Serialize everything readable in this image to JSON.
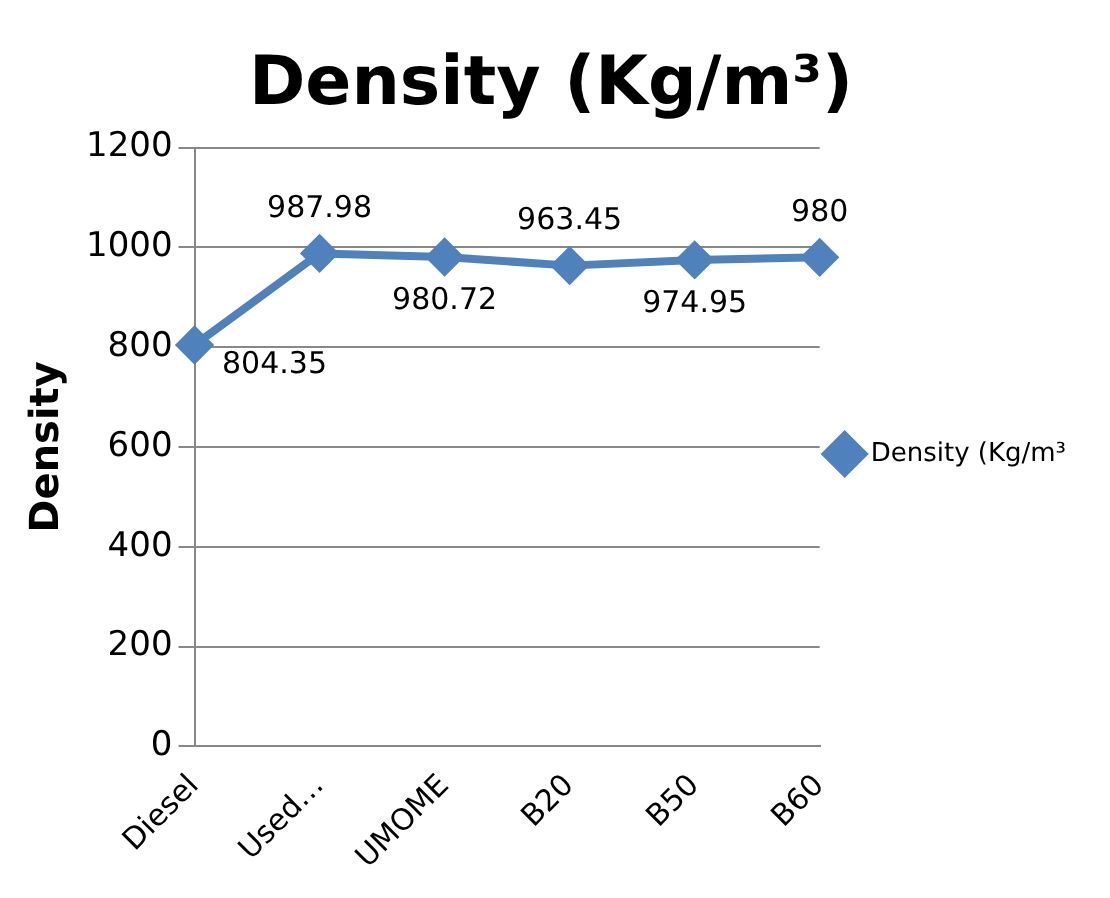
{
  "chart_data": {
    "type": "line",
    "title": "Density (Kg/m³)",
    "ylabel": "Density",
    "categories": [
      "Diesel",
      "Used…",
      "UMOME",
      "B20",
      "B50",
      "B60"
    ],
    "series": [
      {
        "name": "Density (Kg/m³",
        "color": "#4f81bd",
        "values": [
          804.35,
          987.98,
          980.72,
          963.45,
          974.95,
          980
        ]
      }
    ],
    "ylim": [
      0,
      1200
    ],
    "yticks": [
      0,
      200,
      400,
      600,
      800,
      1000,
      1200
    ],
    "grid": "y",
    "legend": "right",
    "marker": "diamond",
    "data_labels": true
  }
}
